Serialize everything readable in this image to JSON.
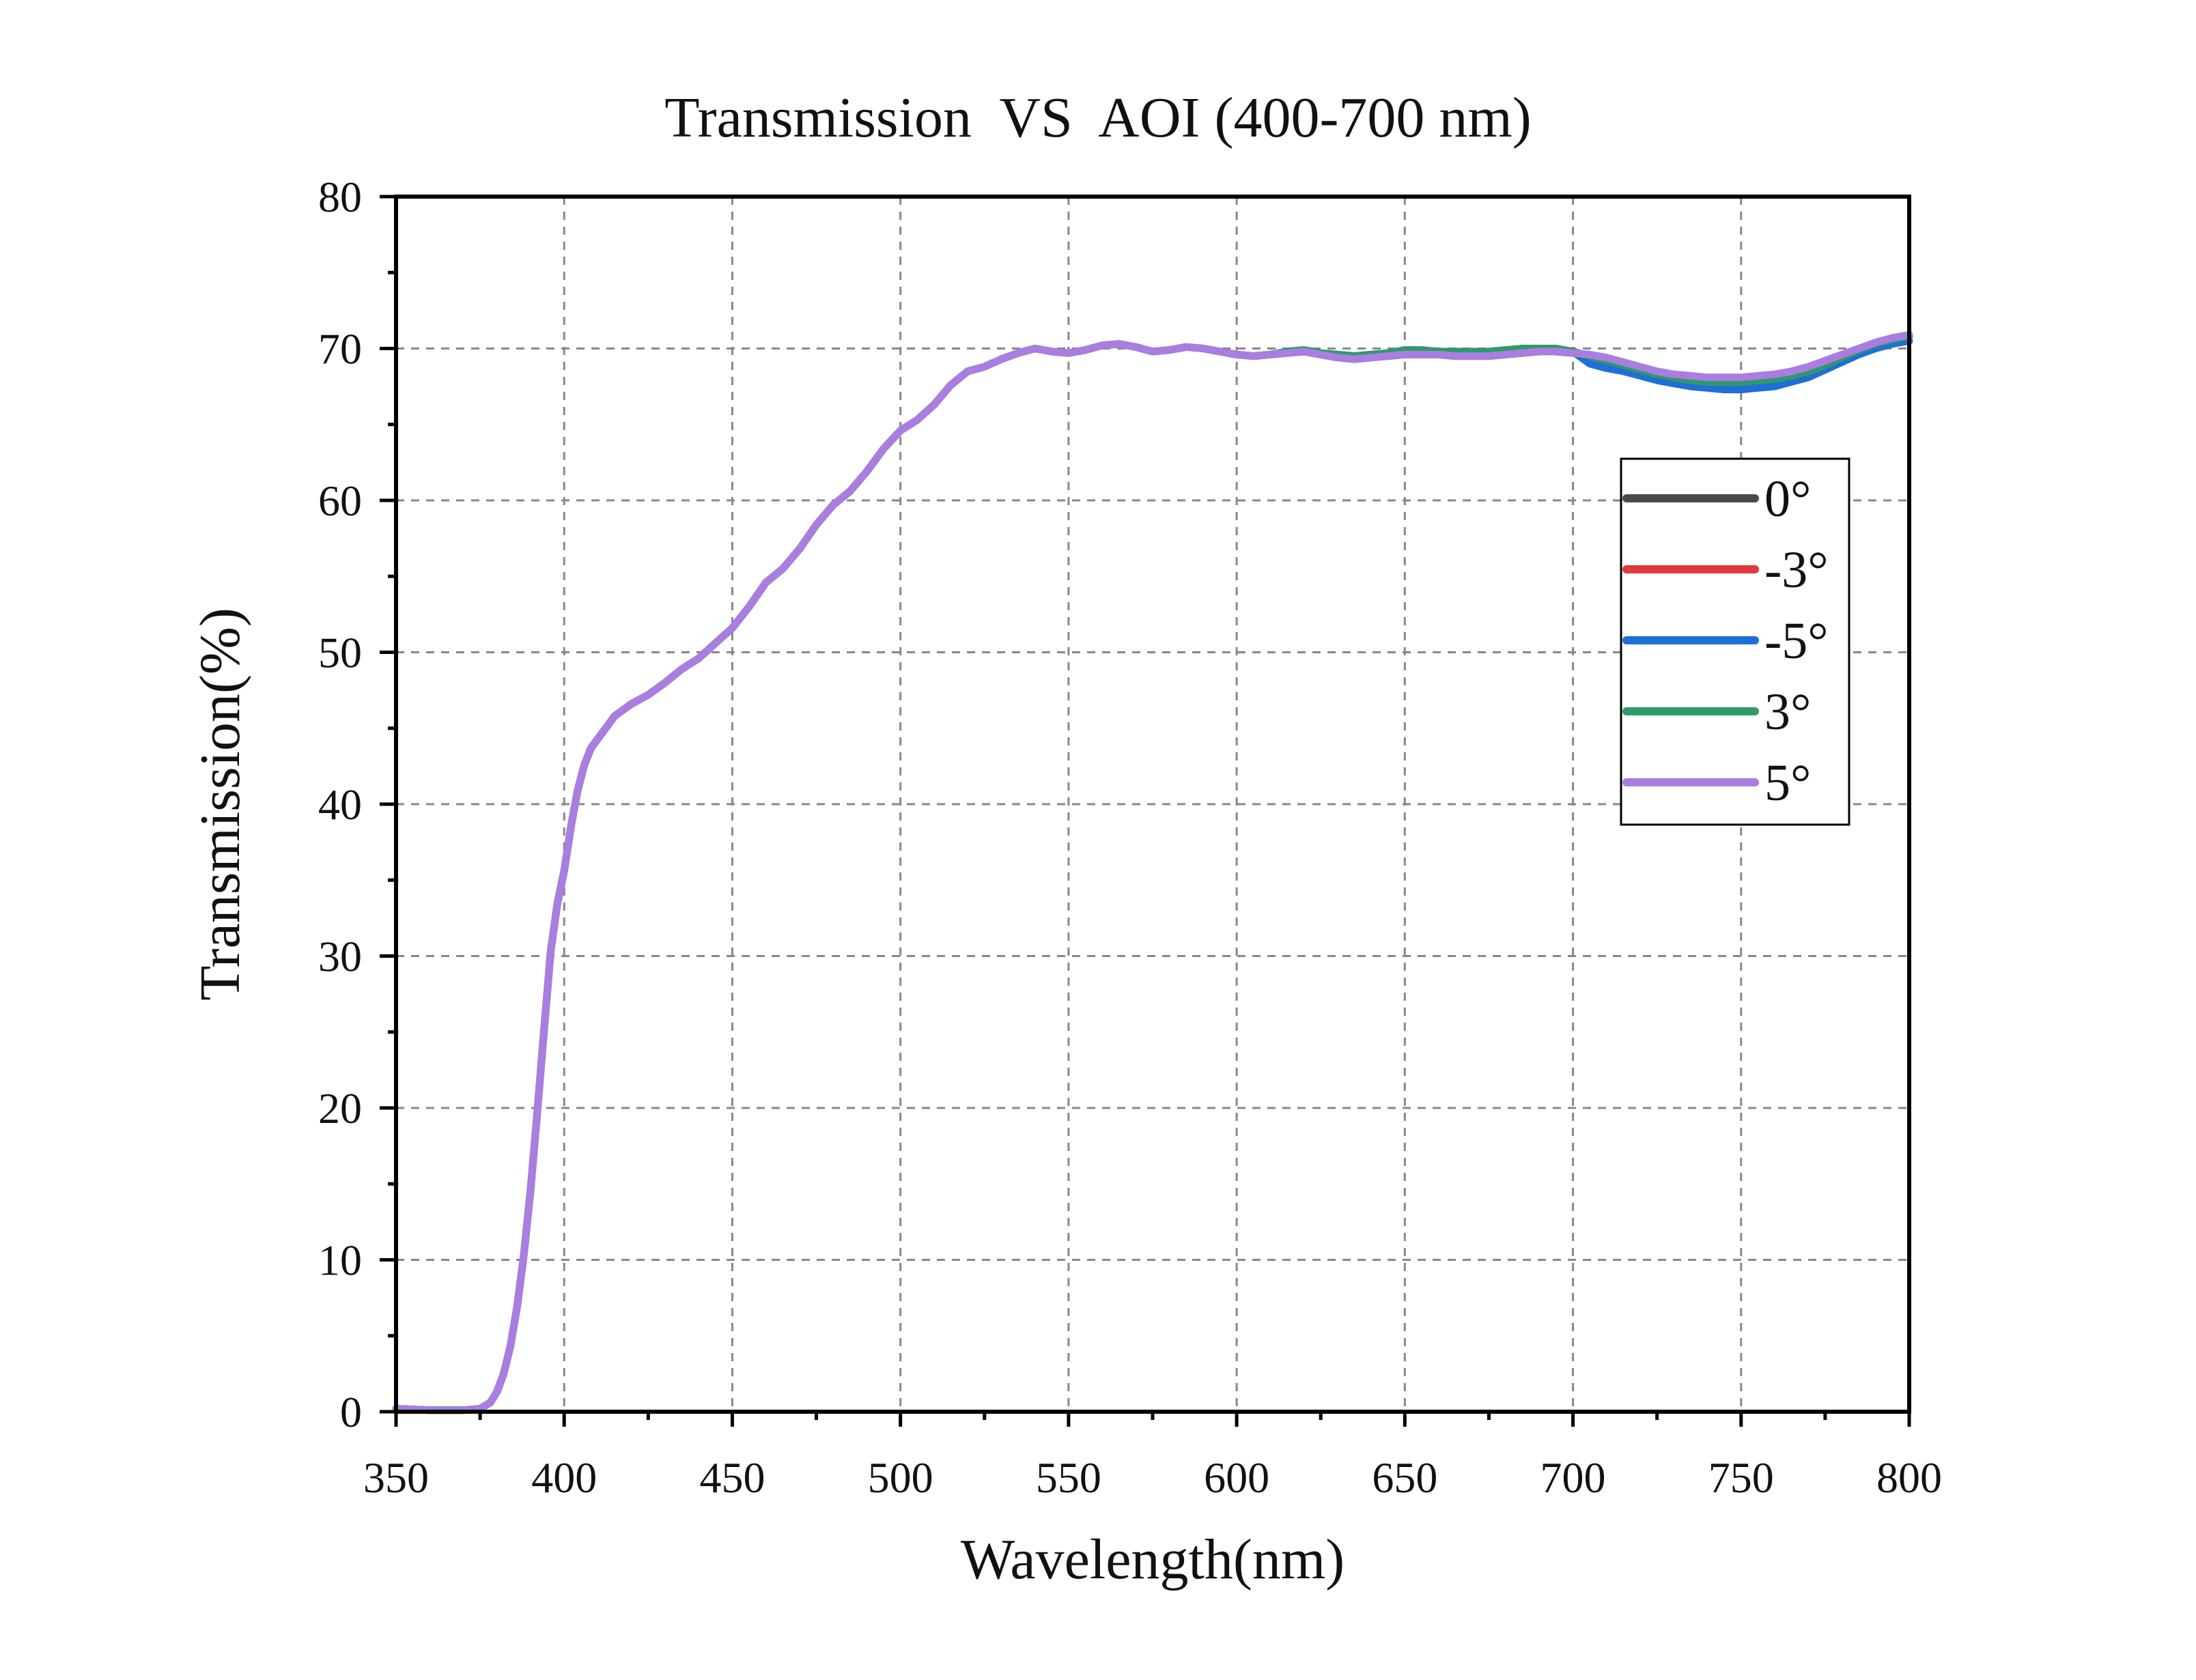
{
  "chart_data": {
    "type": "line",
    "title": "Transmission  VS  AOI (400-700 nm)",
    "xlabel": "Wavelength(nm)",
    "ylabel": "Transmission(%)",
    "xlim": [
      350,
      800
    ],
    "ylim": [
      0,
      80
    ],
    "x_ticks": [
      350,
      400,
      450,
      500,
      550,
      600,
      650,
      700,
      750,
      800
    ],
    "y_ticks": [
      0,
      10,
      20,
      30,
      40,
      50,
      60,
      70,
      80
    ],
    "grid": true,
    "legend_position": "right",
    "x": [
      350,
      360,
      370,
      375,
      378,
      380,
      382,
      384,
      386,
      388,
      390,
      392,
      394,
      396,
      398,
      400,
      402,
      404,
      406,
      408,
      410,
      415,
      420,
      425,
      430,
      435,
      440,
      445,
      450,
      455,
      460,
      465,
      470,
      475,
      480,
      485,
      490,
      495,
      500,
      505,
      510,
      515,
      520,
      525,
      530,
      535,
      540,
      545,
      550,
      555,
      560,
      565,
      570,
      575,
      580,
      585,
      590,
      595,
      600,
      605,
      610,
      615,
      620,
      625,
      630,
      635,
      640,
      645,
      650,
      655,
      660,
      665,
      670,
      675,
      680,
      685,
      690,
      695,
      700,
      705,
      710,
      715,
      720,
      725,
      730,
      735,
      740,
      745,
      750,
      755,
      760,
      765,
      770,
      775,
      780,
      785,
      790,
      795,
      800
    ],
    "series": [
      {
        "name": "0°",
        "color": "#4a4a4a",
        "values": [
          0.2,
          0.1,
          0.1,
          0.2,
          0.6,
          1.3,
          2.5,
          4.3,
          6.9,
          10.3,
          14.6,
          19.7,
          25.1,
          30.3,
          33.5,
          35.6,
          38.5,
          40.9,
          42.6,
          43.7,
          44.3,
          45.8,
          46.6,
          47.2,
          48.0,
          48.9,
          49.6,
          50.6,
          51.6,
          53.0,
          54.6,
          55.5,
          56.8,
          58.4,
          59.7,
          60.6,
          61.9,
          63.4,
          64.6,
          65.3,
          66.3,
          67.6,
          68.5,
          68.8,
          69.3,
          69.7,
          70.0,
          69.8,
          69.7,
          69.9,
          70.2,
          70.3,
          70.1,
          69.8,
          69.9,
          70.1,
          70.0,
          69.8,
          69.6,
          69.5,
          69.6,
          69.7,
          69.8,
          69.6,
          69.4,
          69.3,
          69.4,
          69.5,
          69.6,
          69.6,
          69.6,
          69.5,
          69.5,
          69.5,
          69.6,
          69.7,
          69.8,
          69.8,
          69.7,
          69.5,
          69.2,
          68.9,
          68.6,
          68.3,
          68.1,
          67.9,
          67.8,
          67.8,
          67.8,
          67.9,
          68.0,
          68.2,
          68.5,
          68.9,
          69.4,
          69.9,
          70.3,
          70.6,
          70.8
        ]
      },
      {
        "name": "-3°",
        "color": "#e0393e",
        "values": [
          0.2,
          0.1,
          0.1,
          0.2,
          0.6,
          1.3,
          2.5,
          4.3,
          6.9,
          10.3,
          14.6,
          19.7,
          25.1,
          30.3,
          33.5,
          35.6,
          38.5,
          40.9,
          42.6,
          43.7,
          44.3,
          45.8,
          46.6,
          47.2,
          48.0,
          48.9,
          49.6,
          50.6,
          51.6,
          53.0,
          54.6,
          55.5,
          56.8,
          58.4,
          59.7,
          60.6,
          61.9,
          63.4,
          64.6,
          65.3,
          66.3,
          67.6,
          68.5,
          68.8,
          69.3,
          69.7,
          70.0,
          69.8,
          69.7,
          69.9,
          70.2,
          70.3,
          70.1,
          69.8,
          69.9,
          70.1,
          70.0,
          69.8,
          69.6,
          69.5,
          69.6,
          69.7,
          69.8,
          69.6,
          69.4,
          69.3,
          69.4,
          69.5,
          69.6,
          69.6,
          69.6,
          69.5,
          69.5,
          69.5,
          69.6,
          69.7,
          69.8,
          69.8,
          69.7,
          69.5,
          69.2,
          68.9,
          68.6,
          68.3,
          68.1,
          67.9,
          67.8,
          67.8,
          67.8,
          67.9,
          68.0,
          68.2,
          68.5,
          68.9,
          69.4,
          69.9,
          70.3,
          70.6,
          70.8
        ]
      },
      {
        "name": "-5°",
        "color": "#1f6fd6",
        "values": [
          0.2,
          0.1,
          0.1,
          0.2,
          0.6,
          1.3,
          2.5,
          4.3,
          6.9,
          10.3,
          14.6,
          19.7,
          25.1,
          30.3,
          33.5,
          35.6,
          38.5,
          40.9,
          42.6,
          43.7,
          44.3,
          45.8,
          46.6,
          47.2,
          48.0,
          48.9,
          49.6,
          50.6,
          51.6,
          53.0,
          54.6,
          55.5,
          56.8,
          58.4,
          59.7,
          60.6,
          61.9,
          63.4,
          64.6,
          65.3,
          66.3,
          67.6,
          68.5,
          68.8,
          69.3,
          69.7,
          70.0,
          69.8,
          69.7,
          69.9,
          70.2,
          70.3,
          70.1,
          69.8,
          69.9,
          70.1,
          70.0,
          69.8,
          69.6,
          69.5,
          69.6,
          69.8,
          69.9,
          69.7,
          69.6,
          69.5,
          69.6,
          69.7,
          69.9,
          69.9,
          69.8,
          69.8,
          69.8,
          69.8,
          69.9,
          70.0,
          70.0,
          70.0,
          69.8,
          69.0,
          68.7,
          68.5,
          68.2,
          67.9,
          67.7,
          67.5,
          67.4,
          67.3,
          67.3,
          67.4,
          67.5,
          67.8,
          68.1,
          68.6,
          69.1,
          69.6,
          70.0,
          70.3,
          70.5
        ]
      },
      {
        "name": "3°",
        "color": "#2e9a6a",
        "values": [
          0.2,
          0.1,
          0.1,
          0.2,
          0.6,
          1.3,
          2.5,
          4.3,
          6.9,
          10.3,
          14.6,
          19.7,
          25.1,
          30.3,
          33.5,
          35.6,
          38.5,
          40.9,
          42.6,
          43.7,
          44.3,
          45.8,
          46.6,
          47.2,
          48.0,
          48.9,
          49.6,
          50.6,
          51.6,
          53.0,
          54.6,
          55.5,
          56.8,
          58.4,
          59.7,
          60.6,
          61.9,
          63.4,
          64.6,
          65.3,
          66.3,
          67.6,
          68.5,
          68.8,
          69.3,
          69.7,
          70.0,
          69.8,
          69.7,
          69.9,
          70.2,
          70.3,
          70.1,
          69.8,
          69.9,
          70.1,
          70.0,
          69.8,
          69.6,
          69.5,
          69.6,
          69.8,
          69.9,
          69.7,
          69.6,
          69.5,
          69.6,
          69.7,
          69.9,
          69.9,
          69.8,
          69.8,
          69.8,
          69.8,
          69.9,
          70.0,
          70.0,
          70.0,
          69.8,
          69.5,
          69.2,
          68.9,
          68.6,
          68.3,
          68.1,
          67.9,
          67.8,
          67.8,
          67.8,
          67.9,
          68.0,
          68.2,
          68.5,
          68.9,
          69.4,
          69.9,
          70.3,
          70.6,
          70.8
        ]
      },
      {
        "name": "5°",
        "color": "#a97ee0",
        "values": [
          0.2,
          0.1,
          0.1,
          0.2,
          0.6,
          1.3,
          2.5,
          4.3,
          6.9,
          10.3,
          14.6,
          19.7,
          25.1,
          30.3,
          33.5,
          35.6,
          38.5,
          40.9,
          42.6,
          43.7,
          44.3,
          45.8,
          46.6,
          47.2,
          48.0,
          48.9,
          49.6,
          50.6,
          51.6,
          53.0,
          54.6,
          55.5,
          56.8,
          58.4,
          59.7,
          60.6,
          61.9,
          63.4,
          64.6,
          65.3,
          66.3,
          67.6,
          68.5,
          68.8,
          69.3,
          69.7,
          70.0,
          69.8,
          69.7,
          69.9,
          70.2,
          70.3,
          70.1,
          69.8,
          69.9,
          70.1,
          70.0,
          69.8,
          69.6,
          69.5,
          69.6,
          69.7,
          69.8,
          69.6,
          69.4,
          69.3,
          69.4,
          69.5,
          69.6,
          69.6,
          69.6,
          69.5,
          69.5,
          69.5,
          69.6,
          69.7,
          69.8,
          69.8,
          69.7,
          69.6,
          69.4,
          69.1,
          68.8,
          68.5,
          68.3,
          68.2,
          68.1,
          68.1,
          68.1,
          68.2,
          68.3,
          68.5,
          68.8,
          69.2,
          69.6,
          70.0,
          70.4,
          70.7,
          70.9
        ]
      }
    ]
  }
}
